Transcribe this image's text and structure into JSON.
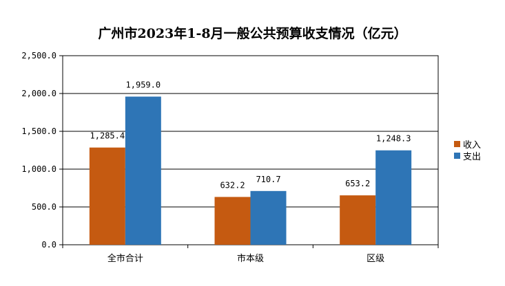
{
  "chart_data": {
    "type": "bar",
    "title": "广州市2023年1-8月一般公共预算收支情况（亿元）",
    "categories": [
      "全市合计",
      "市本级",
      "区级"
    ],
    "series": [
      {
        "name": "收入",
        "color": "#C55A11",
        "values": [
          1285.4,
          632.2,
          653.2
        ],
        "labels": [
          "1,285.4",
          "632.2",
          "653.2"
        ]
      },
      {
        "name": "支出",
        "color": "#2E75B6",
        "values": [
          1959.0,
          710.7,
          1248.3
        ],
        "labels": [
          "1,959.0",
          "710.7",
          "1,248.3"
        ]
      }
    ],
    "yticks": [
      "0.0",
      "500.0",
      "1,000.0",
      "1,500.0",
      "2,000.0",
      "2,500.0"
    ],
    "ylim": [
      0,
      2500
    ],
    "grid": true,
    "legend": "right",
    "xlabel": "",
    "ylabel": ""
  }
}
